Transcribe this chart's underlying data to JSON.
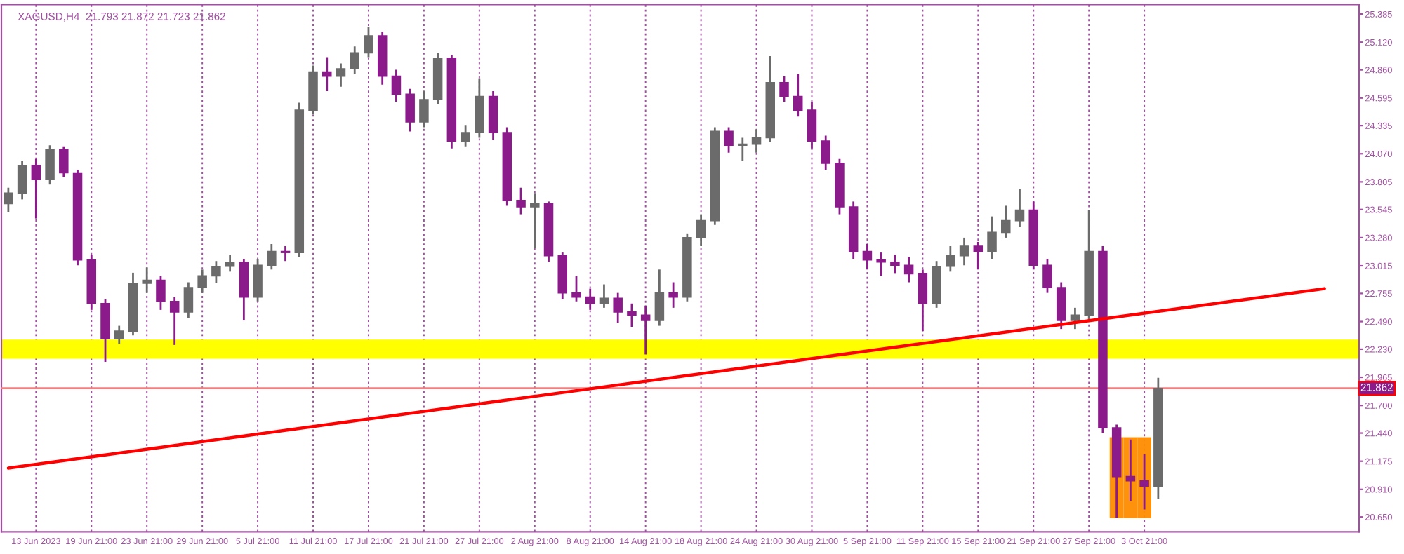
{
  "chart_data": {
    "type": "candlestick",
    "title": "XAGUSD,H4  21.793 21.872 21.723 21.862",
    "categories": [
      null,
      null,
      "13 Jun 2023",
      null,
      null,
      null,
      "19 Jun 21:00",
      null,
      null,
      null,
      "23 Jun 21:00",
      null,
      null,
      null,
      "29 Jun 21:00",
      null,
      null,
      null,
      "5 Jul 21:00",
      null,
      null,
      null,
      "11 Jul 21:00",
      null,
      null,
      null,
      "17 Jul 21:00",
      null,
      null,
      null,
      "21 Jul 21:00",
      null,
      null,
      null,
      "27 Jul 21:00",
      null,
      null,
      null,
      "2 Aug 21:00",
      null,
      null,
      null,
      "8 Aug 21:00",
      null,
      null,
      null,
      "14 Aug 21:00",
      null,
      null,
      null,
      "18 Aug 21:00",
      null,
      null,
      null,
      "24 Aug 21:00",
      null,
      null,
      null,
      "30 Aug 21:00",
      null,
      null,
      null,
      "5 Sep 21:00",
      null,
      null,
      null,
      "11 Sep 21:00",
      null,
      null,
      null,
      "15 Sep 21:00",
      null,
      null,
      null,
      "21 Sep 21:00",
      null,
      null,
      null,
      "27 Sep 21:00",
      null,
      null,
      null,
      "3 Oct 21:00",
      null,
      null,
      null,
      null,
      null,
      null,
      null,
      null,
      null,
      null,
      null,
      null,
      null,
      null,
      null
    ],
    "ohlc": [
      [
        23.6,
        23.75,
        23.52,
        23.7
      ],
      [
        23.7,
        24.0,
        23.64,
        23.96
      ],
      [
        23.96,
        24.02,
        23.46,
        23.83
      ],
      [
        23.83,
        24.15,
        23.78,
        24.11
      ],
      [
        24.11,
        24.14,
        23.85,
        23.89
      ],
      [
        23.89,
        23.92,
        23.02,
        23.07
      ],
      [
        23.07,
        23.12,
        22.6,
        22.66
      ],
      [
        22.66,
        22.7,
        22.11,
        22.33
      ],
      [
        22.33,
        22.45,
        22.28,
        22.4
      ],
      [
        22.4,
        22.95,
        22.36,
        22.85
      ],
      [
        22.85,
        23.0,
        22.76,
        22.88
      ],
      [
        22.88,
        22.92,
        22.6,
        22.68
      ],
      [
        22.68,
        22.72,
        22.27,
        22.58
      ],
      [
        22.58,
        22.86,
        22.52,
        22.81
      ],
      [
        22.81,
        22.98,
        22.76,
        22.92
      ],
      [
        22.92,
        23.06,
        22.85,
        23.01
      ],
      [
        23.01,
        23.12,
        22.96,
        23.05
      ],
      [
        23.05,
        23.08,
        22.5,
        22.72
      ],
      [
        22.72,
        23.08,
        22.68,
        23.02
      ],
      [
        23.02,
        23.22,
        22.98,
        23.15
      ],
      [
        23.15,
        23.2,
        23.06,
        23.14
      ],
      [
        23.14,
        24.55,
        23.1,
        24.48
      ],
      [
        24.48,
        24.9,
        24.44,
        24.84
      ],
      [
        24.84,
        24.98,
        24.66,
        24.8
      ],
      [
        24.8,
        24.92,
        24.7,
        24.87
      ],
      [
        24.87,
        25.08,
        24.82,
        25.02
      ],
      [
        25.02,
        25.26,
        24.98,
        25.18
      ],
      [
        25.18,
        25.22,
        24.72,
        24.8
      ],
      [
        24.8,
        24.86,
        24.56,
        24.63
      ],
      [
        24.63,
        24.68,
        24.28,
        24.37
      ],
      [
        24.37,
        24.66,
        24.32,
        24.58
      ],
      [
        24.58,
        25.02,
        24.54,
        24.97
      ],
      [
        24.97,
        25.0,
        24.12,
        24.19
      ],
      [
        24.19,
        24.34,
        24.14,
        24.27
      ],
      [
        24.27,
        24.78,
        24.22,
        24.61
      ],
      [
        24.61,
        24.66,
        24.2,
        24.27
      ],
      [
        24.27,
        24.32,
        23.58,
        23.63
      ],
      [
        23.63,
        23.75,
        23.5,
        23.57
      ],
      [
        23.57,
        23.7,
        23.18,
        23.6
      ],
      [
        23.6,
        23.62,
        23.05,
        23.11
      ],
      [
        23.11,
        23.14,
        22.7,
        22.76
      ],
      [
        22.76,
        22.92,
        22.68,
        22.72
      ],
      [
        22.72,
        22.8,
        22.6,
        22.66
      ],
      [
        22.66,
        22.84,
        22.62,
        22.71
      ],
      [
        22.71,
        22.76,
        22.48,
        22.58
      ],
      [
        22.58,
        22.66,
        22.44,
        22.55
      ],
      [
        22.55,
        22.64,
        22.18,
        22.5
      ],
      [
        22.5,
        22.98,
        22.45,
        22.76
      ],
      [
        22.76,
        22.86,
        22.62,
        22.72
      ],
      [
        22.72,
        23.32,
        22.68,
        23.28
      ],
      [
        23.28,
        23.5,
        23.2,
        23.44
      ],
      [
        23.44,
        24.32,
        23.4,
        24.28
      ],
      [
        24.28,
        24.32,
        24.08,
        24.15
      ],
      [
        24.15,
        24.22,
        24.0,
        24.16
      ],
      [
        24.16,
        24.3,
        24.08,
        24.22
      ],
      [
        24.22,
        24.99,
        24.18,
        24.74
      ],
      [
        24.74,
        24.8,
        24.56,
        24.61
      ],
      [
        24.61,
        24.82,
        24.42,
        24.48
      ],
      [
        24.48,
        24.56,
        24.12,
        24.19
      ],
      [
        24.19,
        24.24,
        23.92,
        23.98
      ],
      [
        23.98,
        24.02,
        23.5,
        23.57
      ],
      [
        23.57,
        23.62,
        23.08,
        23.15
      ],
      [
        23.15,
        23.22,
        22.98,
        23.07
      ],
      [
        23.07,
        23.14,
        22.92,
        23.05
      ],
      [
        23.05,
        23.12,
        22.94,
        23.02
      ],
      [
        23.02,
        23.1,
        22.86,
        22.94
      ],
      [
        22.94,
        22.98,
        22.4,
        22.66
      ],
      [
        22.66,
        23.06,
        22.62,
        23.01
      ],
      [
        23.01,
        23.2,
        22.96,
        23.11
      ],
      [
        23.11,
        23.28,
        23.02,
        23.2
      ],
      [
        23.2,
        23.24,
        22.98,
        23.15
      ],
      [
        23.15,
        23.48,
        23.08,
        23.33
      ],
      [
        23.33,
        23.58,
        23.28,
        23.44
      ],
      [
        23.44,
        23.74,
        23.38,
        23.54
      ],
      [
        23.54,
        23.62,
        22.98,
        23.02
      ],
      [
        23.02,
        23.08,
        22.76,
        22.81
      ],
      [
        22.81,
        22.86,
        22.42,
        22.5
      ],
      [
        22.5,
        22.62,
        22.42,
        22.55
      ],
      [
        22.55,
        23.54,
        22.5,
        23.15
      ],
      [
        23.15,
        23.2,
        21.44,
        21.49
      ],
      [
        21.49,
        21.52,
        20.64,
        21.03
      ],
      [
        21.03,
        21.38,
        20.8,
        20.99
      ],
      [
        20.99,
        21.24,
        20.72,
        20.94
      ],
      [
        20.94,
        21.96,
        20.82,
        21.86
      ],
      null,
      null,
      null,
      null,
      null,
      null,
      null,
      null,
      null,
      null,
      null,
      null,
      null,
      null
    ],
    "colors": [
      "#6b6b6b",
      "#6b6b6b",
      "#8b1a8b",
      "#6b6b6b",
      "#8b1a8b",
      "#8b1a8b",
      "#8b1a8b",
      "#8b1a8b",
      "#6b6b6b",
      "#6b6b6b",
      "#6b6b6b",
      "#8b1a8b",
      "#8b1a8b",
      "#6b6b6b",
      "#6b6b6b",
      "#6b6b6b",
      "#6b6b6b",
      "#8b1a8b",
      "#6b6b6b",
      "#6b6b6b",
      "#8b1a8b",
      "#6b6b6b",
      "#6b6b6b",
      "#8b1a8b",
      "#6b6b6b",
      "#6b6b6b",
      "#6b6b6b",
      "#8b1a8b",
      "#8b1a8b",
      "#8b1a8b",
      "#6b6b6b",
      "#6b6b6b",
      "#8b1a8b",
      "#6b6b6b",
      "#6b6b6b",
      "#8b1a8b",
      "#8b1a8b",
      "#8b1a8b",
      "#6b6b6b",
      "#8b1a8b",
      "#8b1a8b",
      "#8b1a8b",
      "#8b1a8b",
      "#6b6b6b",
      "#8b1a8b",
      "#8b1a8b",
      "#8b1a8b",
      "#6b6b6b",
      "#8b1a8b",
      "#6b6b6b",
      "#6b6b6b",
      "#6b6b6b",
      "#8b1a8b",
      "#6b6b6b",
      "#6b6b6b",
      "#6b6b6b",
      "#8b1a8b",
      "#8b1a8b",
      "#8b1a8b",
      "#8b1a8b",
      "#8b1a8b",
      "#8b1a8b",
      "#8b1a8b",
      "#8b1a8b",
      "#8b1a8b",
      "#8b1a8b",
      "#8b1a8b",
      "#6b6b6b",
      "#6b6b6b",
      "#6b6b6b",
      "#8b1a8b",
      "#6b6b6b",
      "#6b6b6b",
      "#6b6b6b",
      "#8b1a8b",
      "#8b1a8b",
      "#8b1a8b",
      "#6b6b6b",
      "#6b6b6b",
      "#8b1a8b",
      "#8b1a8b",
      "#8b1a8b",
      "#8b1a8b",
      "#6b6b6b",
      null,
      null,
      null,
      null,
      null,
      null,
      null,
      null,
      null,
      null,
      null,
      null,
      null,
      null
    ],
    "series": [
      {
        "type": "line",
        "values": [
          21.11,
          null,
          null,
          null,
          null,
          null,
          null,
          null,
          null,
          null,
          null,
          null,
          null,
          null,
          null,
          null,
          null,
          null,
          null,
          null,
          null,
          null,
          null,
          null,
          null,
          null,
          null,
          null,
          null,
          null,
          null,
          null,
          null,
          null,
          null,
          null,
          null,
          null,
          null,
          null,
          null,
          null,
          null,
          null,
          null,
          null,
          null,
          null,
          null,
          null,
          null,
          null,
          null,
          null,
          null,
          null,
          null,
          null,
          null,
          null,
          null,
          null,
          null,
          null,
          null,
          null,
          null,
          null,
          null,
          null,
          null,
          null,
          null,
          null,
          null,
          null,
          null,
          null,
          null,
          null,
          null,
          null,
          null,
          null,
          null,
          null,
          null,
          null,
          null,
          null,
          null,
          null,
          null,
          null,
          null,
          22.8,
          null,
          null
        ],
        "color": "#ff0000"
      },
      {
        "type": "bar",
        "base": [
          null,
          null,
          null,
          null,
          null,
          null,
          null,
          null,
          null,
          null,
          null,
          null,
          null,
          null,
          null,
          null,
          null,
          null,
          null,
          null,
          null,
          null,
          null,
          null,
          null,
          null,
          null,
          null,
          null,
          null,
          null,
          null,
          null,
          null,
          null,
          null,
          null,
          null,
          null,
          null,
          null,
          null,
          null,
          null,
          null,
          null,
          null,
          null,
          null,
          null,
          null,
          null,
          null,
          null,
          null,
          null,
          null,
          null,
          null,
          null,
          null,
          null,
          null,
          null,
          null,
          null,
          null,
          null,
          null,
          null,
          null,
          null,
          null,
          null,
          null,
          null,
          null,
          null,
          null,
          null,
          20.64,
          20.64,
          20.64,
          null,
          null,
          null,
          null,
          null,
          null,
          null,
          null,
          null,
          null,
          null,
          null,
          null,
          null,
          null
        ],
        "values": [
          null,
          null,
          null,
          null,
          null,
          null,
          null,
          null,
          null,
          null,
          null,
          null,
          null,
          null,
          null,
          null,
          null,
          null,
          null,
          null,
          null,
          null,
          null,
          null,
          null,
          null,
          null,
          null,
          null,
          null,
          null,
          null,
          null,
          null,
          null,
          null,
          null,
          null,
          null,
          null,
          null,
          null,
          null,
          null,
          null,
          null,
          null,
          null,
          null,
          null,
          null,
          null,
          null,
          null,
          null,
          null,
          null,
          null,
          null,
          null,
          null,
          null,
          null,
          null,
          null,
          null,
          null,
          null,
          null,
          null,
          null,
          null,
          null,
          null,
          null,
          null,
          null,
          null,
          null,
          null,
          0.76,
          0.76,
          0.76,
          null,
          null,
          null,
          null,
          null,
          null,
          null,
          null,
          null,
          null,
          null,
          null,
          null,
          null,
          null
        ],
        "color": "#ff8c00"
      }
    ],
    "bands": [
      {
        "axis": "y",
        "from": 22.14,
        "to": 22.32,
        "color": "#ffff00"
      }
    ],
    "ref_lines": [
      {
        "axis": "y",
        "value": 21.862,
        "label": "21.862",
        "color": "#f08080"
      }
    ],
    "ylim": [
      20.51,
      25.476
    ],
    "yticks": [
      25.385,
      {
        "value": 25.12,
        "label": "25.120"
      },
      {
        "value": 24.86,
        "label": "24.860"
      },
      24.595,
      24.335,
      {
        "value": 24.07,
        "label": "24.070"
      },
      23.805,
      23.545,
      {
        "value": 23.28,
        "label": "23.280"
      },
      23.015,
      22.755,
      {
        "value": 22.49,
        "label": "22.490"
      },
      {
        "value": 22.23,
        "label": "22.230"
      },
      21.965,
      {
        "value": 21.7,
        "label": "21.700"
      },
      {
        "value": 21.44,
        "label": "21.440"
      },
      21.175,
      {
        "value": 20.91,
        "label": "20.910"
      },
      {
        "value": 20.65,
        "label": "20.650"
      }
    ],
    "grid": "x"
  }
}
